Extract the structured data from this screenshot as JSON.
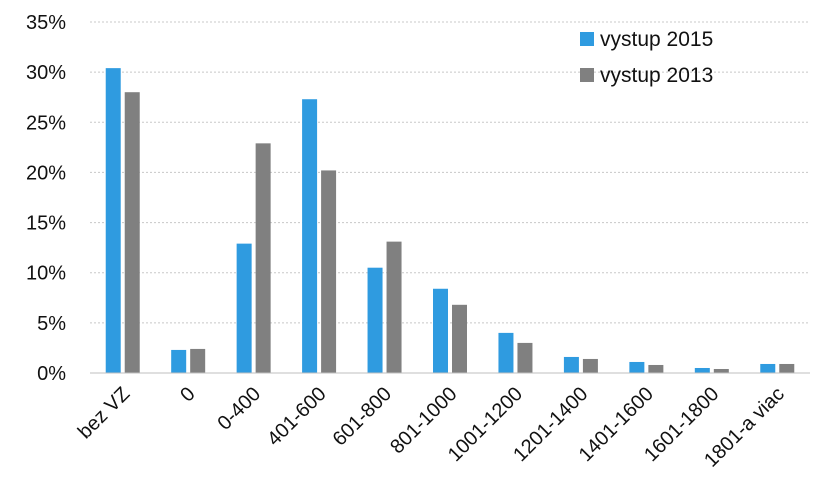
{
  "chart_data": {
    "type": "bar",
    "categories": [
      "bez VZ",
      "0",
      "0-400",
      "401-600",
      "601-800",
      "801-1000",
      "1001-1200",
      "1201-1400",
      "1401-1600",
      "1601-1800",
      "1801-a viac"
    ],
    "series": [
      {
        "name": "vystup 2015",
        "color": "#2f9be0",
        "values": [
          30.4,
          2.3,
          12.9,
          27.3,
          10.5,
          8.4,
          4.0,
          1.6,
          1.1,
          0.5,
          0.9
        ]
      },
      {
        "name": "vystup 2013",
        "color": "#808080",
        "values": [
          28.0,
          2.4,
          22.9,
          20.2,
          13.1,
          6.8,
          3.0,
          1.4,
          0.8,
          0.4,
          0.9
        ]
      }
    ],
    "y_ticks": [
      "0%",
      "5%",
      "10%",
      "15%",
      "20%",
      "25%",
      "30%",
      "35%"
    ],
    "ylim": [
      0,
      35
    ],
    "grid": true,
    "legend_position": "top-right",
    "title": "",
    "xlabel": "",
    "ylabel": ""
  }
}
